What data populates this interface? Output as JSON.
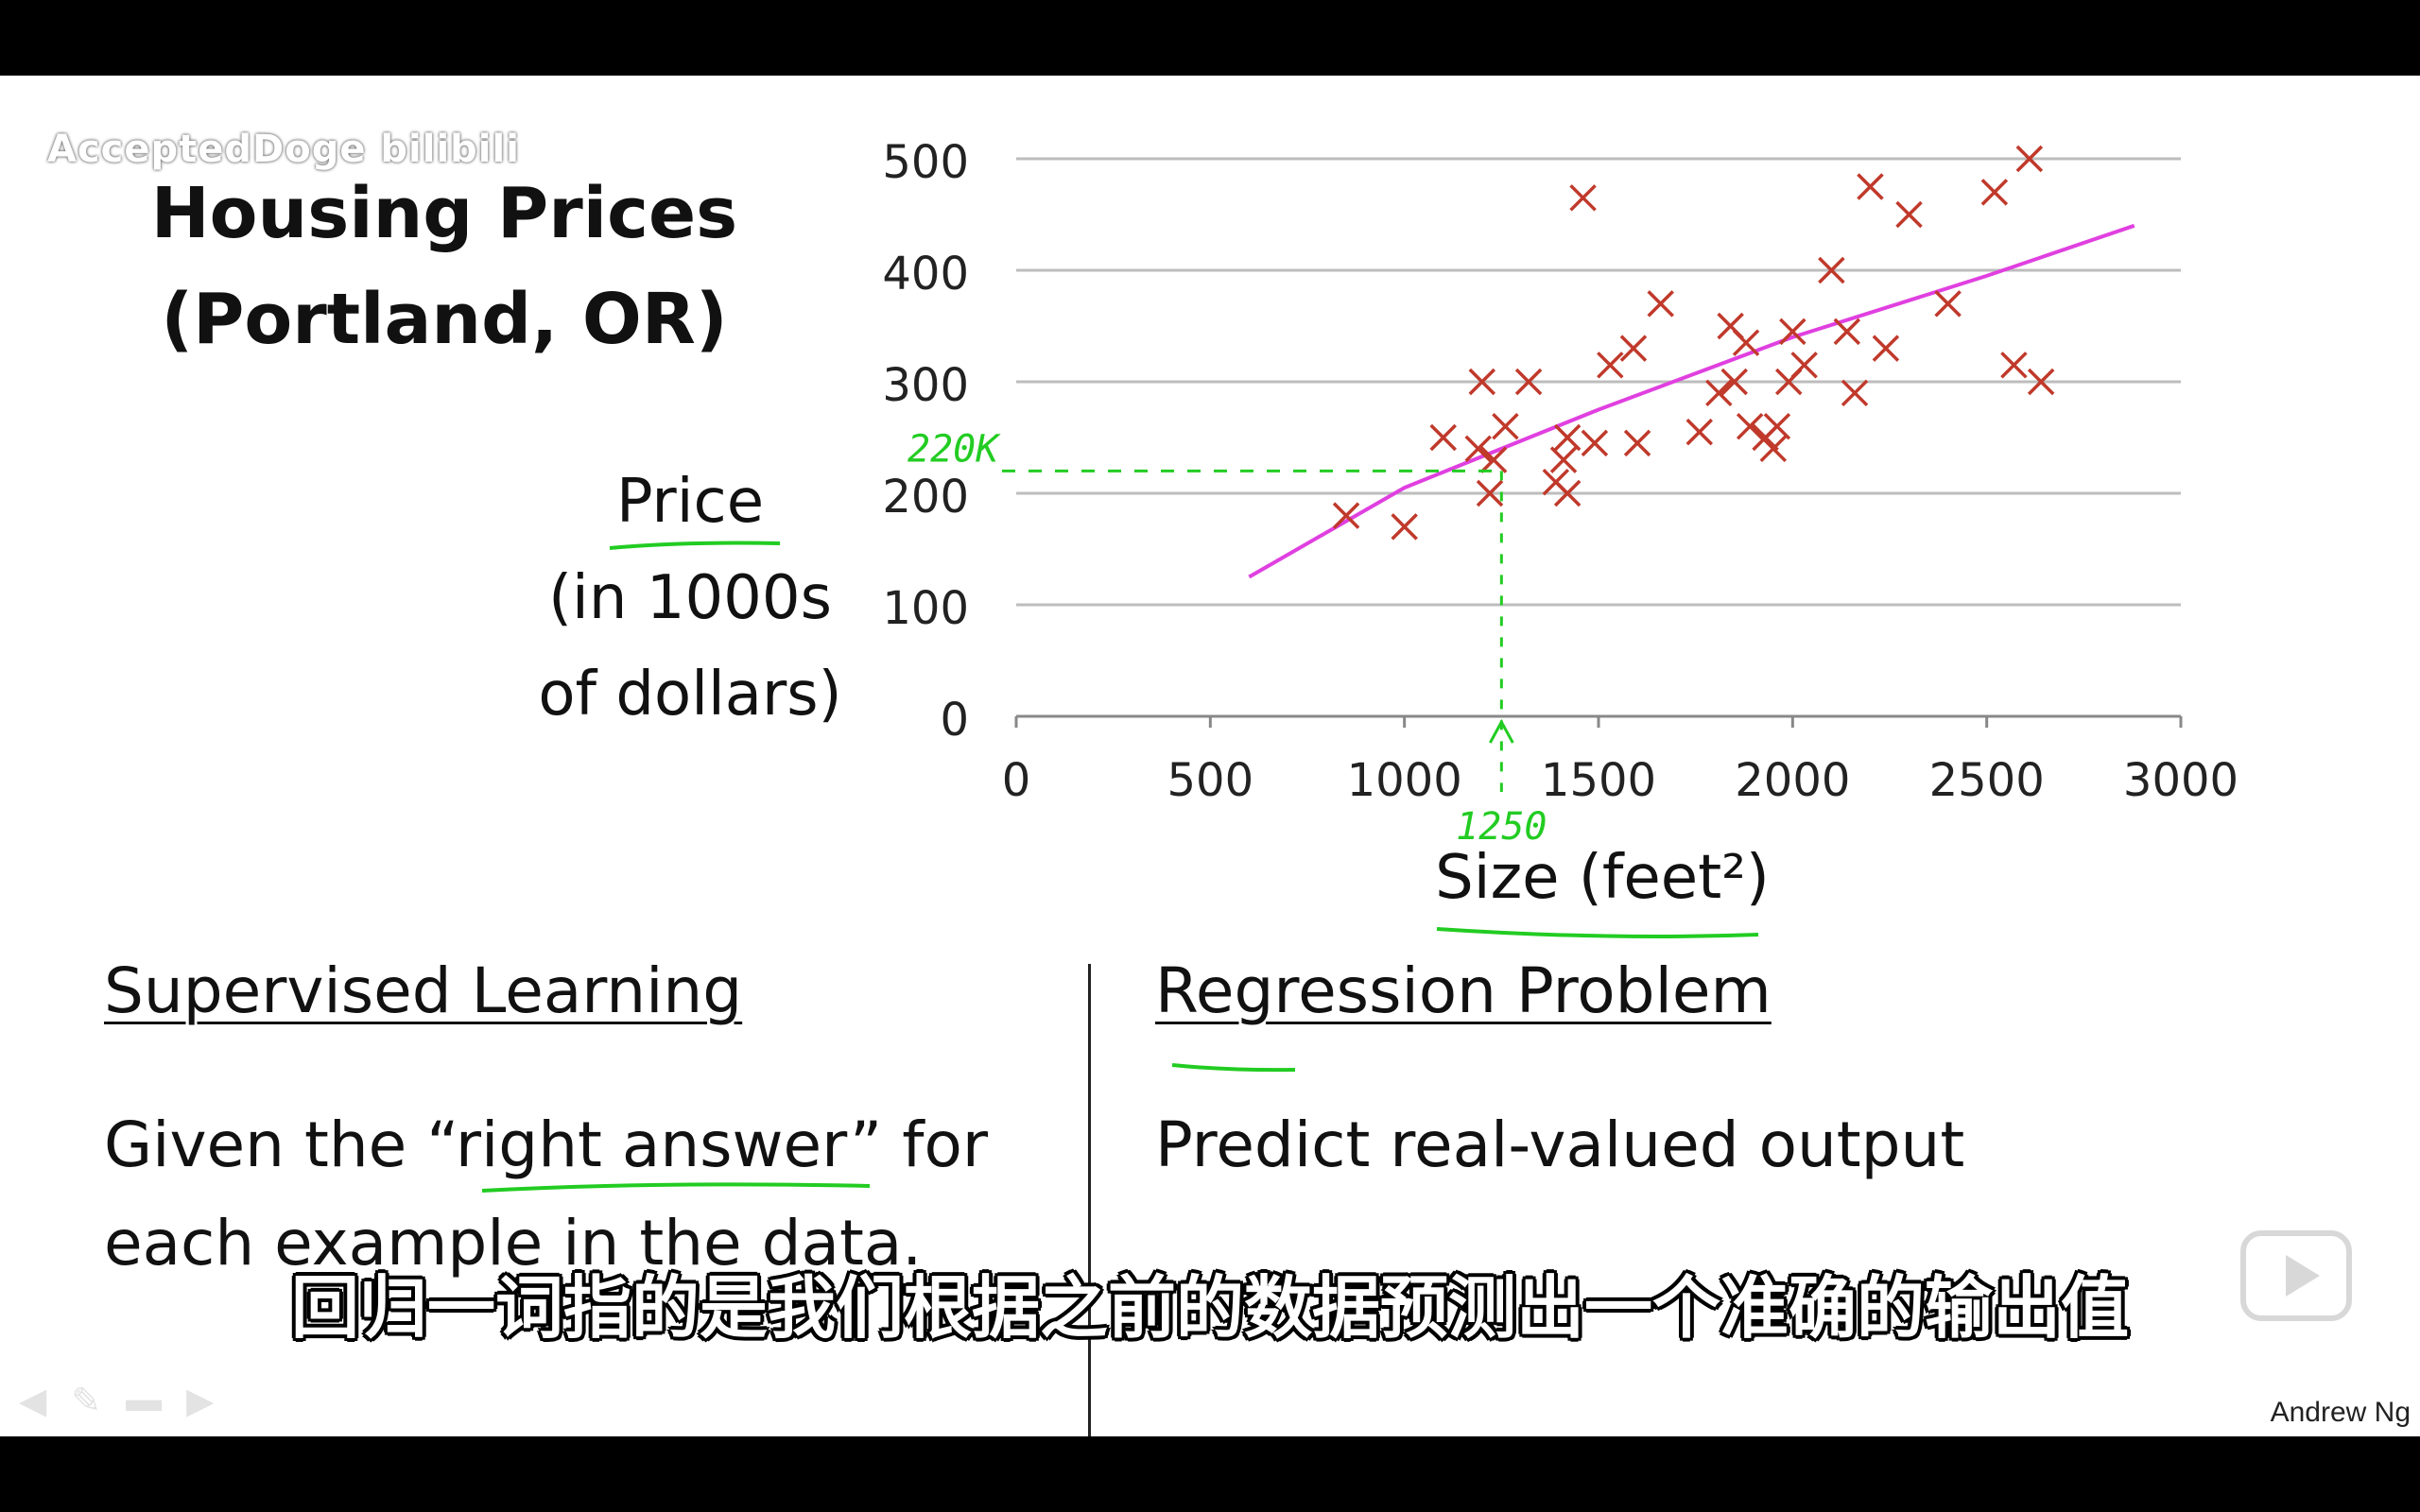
{
  "watermark": "AcceptedDoge bilibili",
  "slide": {
    "title_line1": "Housing Prices",
    "title_line2": "(Portland, OR)",
    "y_label_line1": "Price",
    "y_label_line2": "(in 1000s",
    "y_label_line3": "of dollars)",
    "x_label": "Size (feet²)",
    "left_heading": "Supervised Learning",
    "left_body_line1": "Given the “right answer” for",
    "left_body_line2": "each example in the data.",
    "right_heading": "Regression Problem",
    "right_body": "Predict real-valued output",
    "author": "Andrew Ng"
  },
  "annotations": {
    "price_note": "220K",
    "size_note": "1250"
  },
  "subtitle": "回归一词指的是我们根据之前的数据预测出一个准确的输出值",
  "colors": {
    "points": "#c0392b",
    "fit_line": "#e040e0",
    "annotation": "#22cc22",
    "gridline": "#bdbdbd"
  },
  "icons": {
    "play": "play-icon",
    "controls": [
      "back-icon",
      "pen-icon",
      "menu-icon",
      "forward-icon"
    ]
  },
  "chart_data": {
    "type": "scatter",
    "title": "Housing Prices (Portland, OR)",
    "xlabel": "Size (feet²)",
    "ylabel": "Price (in 1000s of dollars)",
    "xlim": [
      0,
      3000
    ],
    "ylim": [
      0,
      500
    ],
    "xticks": [
      0,
      500,
      1000,
      1500,
      2000,
      2500,
      3000
    ],
    "yticks": [
      0,
      100,
      200,
      300,
      400,
      500
    ],
    "grid": "horizontal",
    "points": [
      [
        850,
        180
      ],
      [
        1000,
        170
      ],
      [
        1100,
        250
      ],
      [
        1200,
        300
      ],
      [
        1190,
        240
      ],
      [
        1230,
        230
      ],
      [
        1220,
        200
      ],
      [
        1260,
        260
      ],
      [
        1320,
        300
      ],
      [
        1390,
        210
      ],
      [
        1420,
        250
      ],
      [
        1410,
        230
      ],
      [
        1420,
        200
      ],
      [
        1460,
        465
      ],
      [
        1490,
        245
      ],
      [
        1530,
        315
      ],
      [
        1590,
        330
      ],
      [
        1600,
        245
      ],
      [
        1660,
        370
      ],
      [
        1760,
        255
      ],
      [
        1810,
        290
      ],
      [
        1840,
        350
      ],
      [
        1850,
        300
      ],
      [
        1880,
        335
      ],
      [
        1890,
        260
      ],
      [
        1930,
        250
      ],
      [
        1950,
        240
      ],
      [
        1960,
        260
      ],
      [
        1990,
        300
      ],
      [
        2000,
        345
      ],
      [
        2030,
        315
      ],
      [
        2100,
        400
      ],
      [
        2140,
        345
      ],
      [
        2160,
        290
      ],
      [
        2200,
        475
      ],
      [
        2240,
        330
      ],
      [
        2300,
        450
      ],
      [
        2400,
        370
      ],
      [
        2520,
        470
      ],
      [
        2570,
        315
      ],
      [
        2610,
        500
      ],
      [
        2640,
        300
      ]
    ],
    "fit_line": [
      [
        600,
        125
      ],
      [
        1000,
        205
      ],
      [
        1500,
        275
      ],
      [
        2000,
        340
      ],
      [
        2500,
        395
      ],
      [
        2880,
        440
      ]
    ],
    "annotation": {
      "x": 1250,
      "y": 220
    }
  }
}
